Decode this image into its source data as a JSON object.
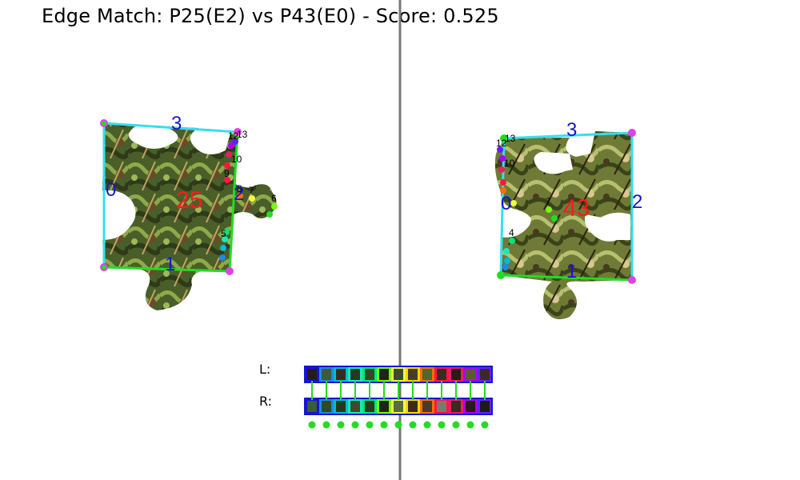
{
  "title": "Edge Match: P25(E2) vs P43(E0) - Score: 0.525",
  "colors": {
    "divider": "#777777",
    "frame": "#33e0ee",
    "frame_bottom": "#22cc22",
    "edge_label": "#1515d0",
    "piece_id": "#ff1a1a",
    "corner": "#e040e8",
    "corner_alt": "#22dd22",
    "connector": "#22dd22",
    "strip_border": "#1515d0"
  },
  "left_piece": {
    "id_label": "25",
    "edge_labels": [
      "0",
      "1",
      "2",
      "3"
    ],
    "point_labels": [
      "10",
      "11",
      "12",
      "13",
      "9",
      "8",
      "7",
      "6",
      "5"
    ]
  },
  "right_piece": {
    "id_label": "43",
    "edge_labels": [
      "0",
      "1",
      "2",
      "3"
    ],
    "point_labels": [
      "10",
      "11",
      "12",
      "13",
      "9",
      "8",
      "7",
      "6",
      "5",
      "4"
    ]
  },
  "strips": {
    "left_label": "L:",
    "right_label": "R:",
    "left_fills": [
      "#2a1a1a",
      "#3d5a3a",
      "#3a2a22",
      "#243a1e",
      "#2f4a22",
      "#1e2418",
      "#3e4a2e",
      "#4a3a2a",
      "#4a6a2e",
      "#3a2a22",
      "#2a1a1a",
      "#5a5a3a",
      "#3a2a22"
    ],
    "left_borders": [
      "#1515d0",
      "#1e88e5",
      "#00bcd4",
      "#1de9b6",
      "#00e676",
      "#76ff03",
      "#eeff41",
      "#ffd600",
      "#ff6d00",
      "#ff1744",
      "#e91e63",
      "#aa00ff",
      "#651fff"
    ],
    "right_fills": [
      "#3d5a3a",
      "#2f4a22",
      "#243a1e",
      "#3e4a2e",
      "#2a3a1e",
      "#1e2418",
      "#5a6a3e",
      "#3a2a22",
      "#4a3a2a",
      "#7a7a6a",
      "#3a2a22",
      "#2a1a1a",
      "#1e1a18"
    ],
    "right_borders": [
      "#1515d0",
      "#1e88e5",
      "#00bcd4",
      "#1de9b6",
      "#00e676",
      "#76ff03",
      "#eeff41",
      "#ffd600",
      "#ff6d00",
      "#ff1744",
      "#e91e63",
      "#aa00ff",
      "#651fff"
    ],
    "match_dot_count": 13
  }
}
